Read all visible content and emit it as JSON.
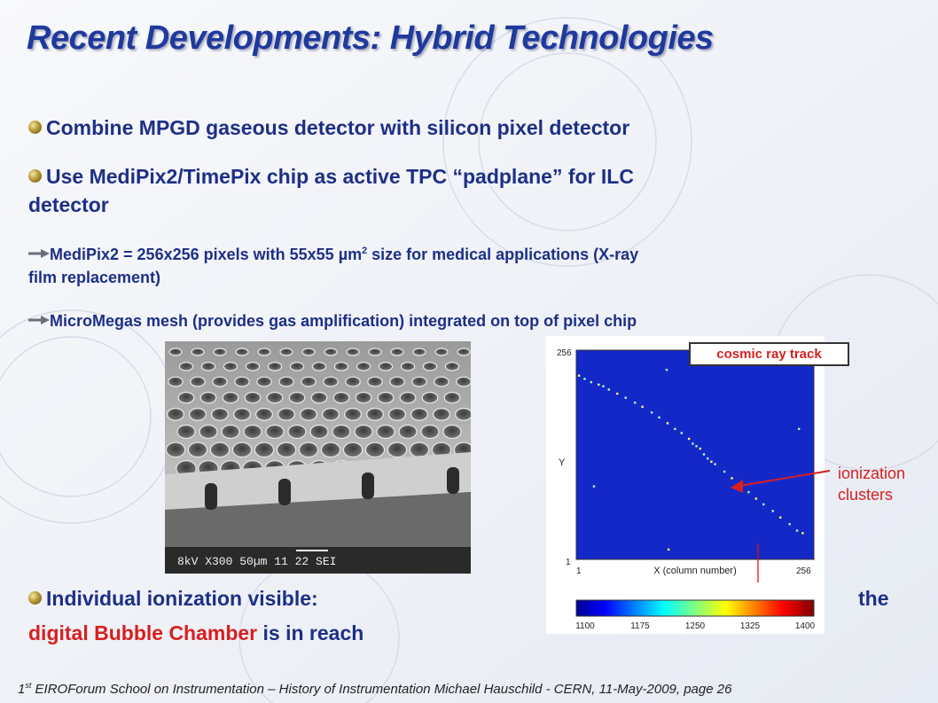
{
  "slide": {
    "title": "Recent Developments: Hybrid Technologies",
    "bullets": {
      "b1": "Combine MPGD gaseous detector with silicon pixel detector",
      "b2_line1": "Use MediPix2/TimePix chip as active TPC “padplane” for ILC",
      "b2_line2": "detector",
      "b3_line1_pre": "MediPix2 = 256x256 pixels with 55x55 µm",
      "b3_sup": "2",
      "b3_line1_post": " size for medical applications (X-ray",
      "b3_line2": "film replacement)",
      "b4": "MicroMegas mesh (provides gas amplification) integrated on top of pixel chip",
      "b5_part1": "Individual ionization visible:",
      "b5_part2": "the",
      "b5_red": "digital Bubble Chamber",
      "b5_rest": " is in reach"
    },
    "sem_image": {
      "label": "8kV   X300   50µm   11 22 SEI"
    },
    "annotations": {
      "tag": "cosmic ray track",
      "ionization": "ionization",
      "clusters": "clusters"
    },
    "footer": {
      "sup": "st",
      "part1": "1",
      "part2": " EIROForum School on Instrumentation – History of Instrumentation   Michael Hauschild - CERN,  11-May-2009,  page 26"
    },
    "colors": {
      "title": "#1f3a9c",
      "text": "#1d2f86",
      "accent_red": "#d81f1f"
    }
  },
  "chart_data": {
    "type": "heatmap",
    "xlabel": "X (column number)",
    "ylabel": "Y",
    "xlim": [
      1,
      256
    ],
    "ylim": [
      1,
      256
    ],
    "x_ticks": [
      "1",
      "256"
    ],
    "y_ticks": [
      "1",
      "256"
    ],
    "colorbar_ticks": [
      1100,
      1175,
      1250,
      1325,
      1400
    ],
    "colorbar_range": [
      1100,
      1400
    ],
    "background_color": "#1428c8",
    "hits": [
      {
        "x": 4,
        "y": 225
      },
      {
        "x": 10,
        "y": 221
      },
      {
        "x": 17,
        "y": 217
      },
      {
        "x": 25,
        "y": 214
      },
      {
        "x": 30,
        "y": 212
      },
      {
        "x": 36,
        "y": 208
      },
      {
        "x": 45,
        "y": 203
      },
      {
        "x": 54,
        "y": 198
      },
      {
        "x": 64,
        "y": 192
      },
      {
        "x": 72,
        "y": 187
      },
      {
        "x": 82,
        "y": 180
      },
      {
        "x": 90,
        "y": 174
      },
      {
        "x": 99,
        "y": 167
      },
      {
        "x": 107,
        "y": 160
      },
      {
        "x": 114,
        "y": 155
      },
      {
        "x": 122,
        "y": 148
      },
      {
        "x": 126,
        "y": 142
      },
      {
        "x": 130,
        "y": 139
      },
      {
        "x": 134,
        "y": 136
      },
      {
        "x": 138,
        "y": 129
      },
      {
        "x": 142,
        "y": 124
      },
      {
        "x": 146,
        "y": 120
      },
      {
        "x": 150,
        "y": 117
      },
      {
        "x": 160,
        "y": 108
      },
      {
        "x": 168,
        "y": 100
      },
      {
        "x": 176,
        "y": 92
      },
      {
        "x": 186,
        "y": 83
      },
      {
        "x": 194,
        "y": 75
      },
      {
        "x": 202,
        "y": 68
      },
      {
        "x": 212,
        "y": 60
      },
      {
        "x": 220,
        "y": 52
      },
      {
        "x": 230,
        "y": 44
      },
      {
        "x": 238,
        "y": 36
      },
      {
        "x": 244,
        "y": 33
      },
      {
        "x": 98,
        "y": 232
      },
      {
        "x": 240,
        "y": 160
      },
      {
        "x": 100,
        "y": 13
      },
      {
        "x": 20,
        "y": 90
      }
    ]
  }
}
